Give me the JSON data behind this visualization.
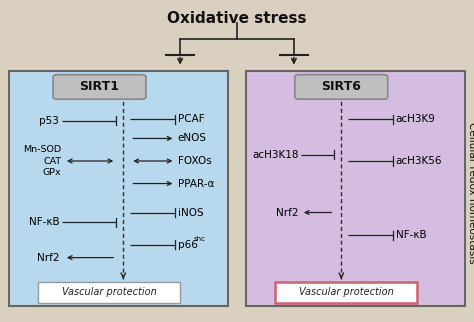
{
  "title": "Oxidative stress",
  "sidebar_text": "Cellular redox homeostasis",
  "bg_color": "#d9d0c0",
  "sirt1_bg": "#b8d8ee",
  "sirt6_bg": "#d4bde0",
  "sirt1_label": "SIRT1",
  "sirt6_label": "SIRT6",
  "vascular_label": "Vascular protection",
  "box_edge": "#666666",
  "lbl_box_face": "#c0bfc0",
  "lbl_box_edge": "#888888",
  "arrow_color": "#222222",
  "figw": 4.74,
  "figh": 3.22,
  "dpi": 100
}
